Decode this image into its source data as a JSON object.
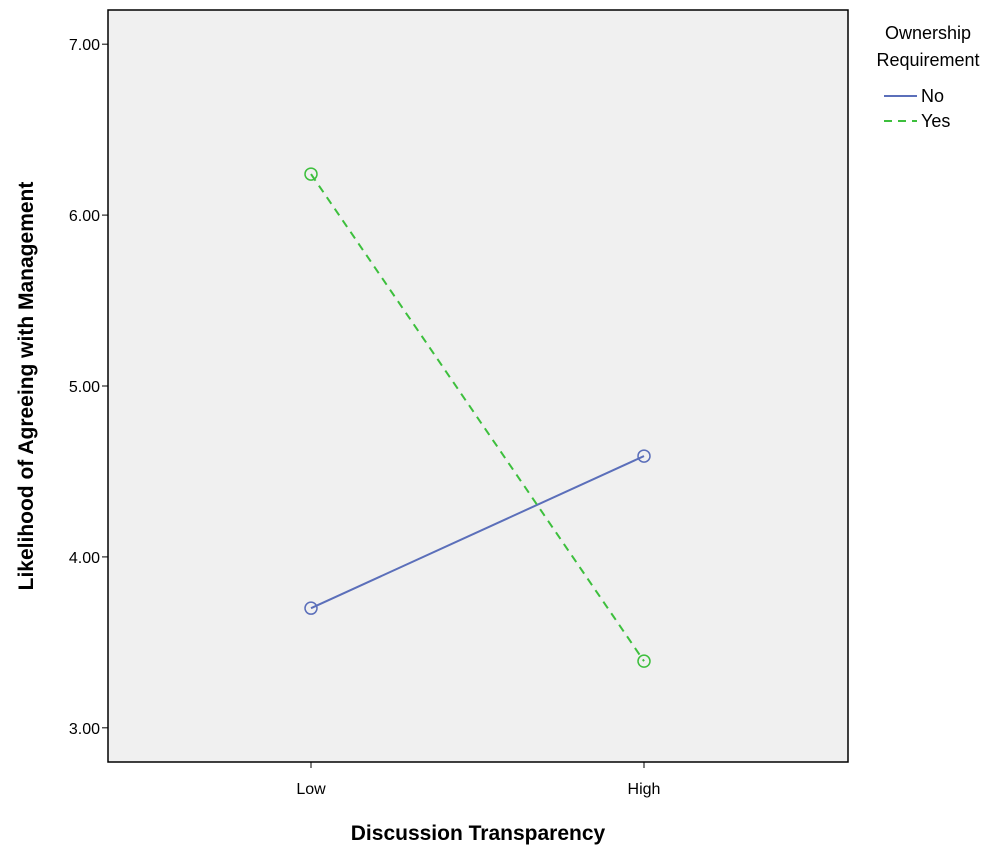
{
  "chart_data": {
    "type": "line",
    "xlabel": "Discussion Transparency",
    "ylabel": "Likelihood of Agreeing with Management",
    "categories": [
      "Low",
      "High"
    ],
    "ylim": [
      2.8,
      7.2
    ],
    "yticks": [
      3.0,
      4.0,
      5.0,
      6.0,
      7.0
    ],
    "ytick_labels": [
      "3.00",
      "4.00",
      "5.00",
      "6.00",
      "7.00"
    ],
    "grid": false,
    "legend": {
      "title_lines": [
        "Ownership",
        "Requirement"
      ],
      "placement": "right"
    },
    "series": [
      {
        "name": "No",
        "values": [
          3.7,
          4.59
        ],
        "color": "#5b6fba",
        "dashed": false,
        "marker": "open-circle"
      },
      {
        "name": "Yes",
        "values": [
          6.24,
          3.39
        ],
        "color": "#3dbf3d",
        "dashed": true,
        "marker": "open-circle"
      }
    ],
    "plot_background": "#f0f0f0"
  }
}
